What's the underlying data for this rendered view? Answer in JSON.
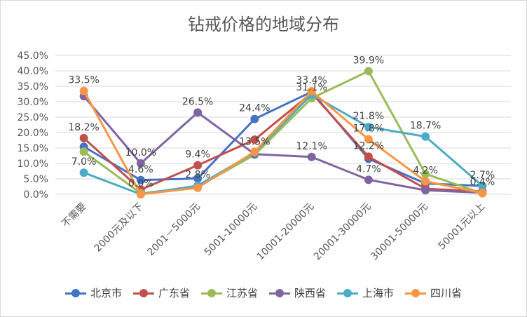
{
  "chart_data": {
    "type": "line",
    "title": "钻戒价格的地域分布",
    "xlabel": "",
    "ylabel": "",
    "ylim": [
      0,
      45
    ],
    "yticks": [
      "0.0%",
      "5.0%",
      "10.0%",
      "15.0%",
      "20.0%",
      "25.0%",
      "30.0%",
      "35.0%",
      "40.0%",
      "45.0%"
    ],
    "grid": true,
    "legend_position": "bottom",
    "categories": [
      "不需要",
      "2000元及以下",
      "2001－5000元",
      "5001-10000元",
      "10001-20000元",
      "20001-30000元",
      "30001-50000元",
      "50001元以上"
    ],
    "series": [
      {
        "name": "北京市",
        "color": "#4472c4",
        "values": [
          15.4,
          4.6,
          5.1,
          24.4,
          33.2,
          11.5,
          3.5,
          2.7
        ]
      },
      {
        "name": "广东省",
        "color": "#c0504d",
        "values": [
          18.2,
          1.5,
          9.4,
          17.7,
          32.8,
          12.2,
          1.8,
          0.9
        ]
      },
      {
        "name": "江苏省",
        "color": "#9bbb59",
        "values": [
          13.8,
          0.3,
          2.4,
          12.8,
          31.1,
          39.9,
          6.6,
          0.3
        ]
      },
      {
        "name": "陕西省",
        "color": "#8064a2",
        "values": [
          31.8,
          10.0,
          26.5,
          13.0,
          12.1,
          4.7,
          1.3,
          0.5
        ]
      },
      {
        "name": "上海市",
        "color": "#4bacc6",
        "values": [
          7.0,
          0.0,
          2.8,
          13.5,
          32.3,
          21.8,
          18.7,
          2.7
        ]
      },
      {
        "name": "四川省",
        "color": "#f79646",
        "values": [
          33.5,
          0.0,
          2.1,
          13.8,
          33.4,
          17.8,
          4.2,
          0.4
        ]
      }
    ],
    "data_labels": [
      {
        "text": "33.5%",
        "series": 5,
        "index": 0
      },
      {
        "text": "18.2%",
        "series": 1,
        "index": 0
      },
      {
        "text": "7.0%",
        "series": 4,
        "index": 0
      },
      {
        "text": "10.0%",
        "series": 3,
        "index": 1
      },
      {
        "text": "4.6%",
        "series": 0,
        "index": 1
      },
      {
        "text": "0.0%",
        "series": 4,
        "index": 1
      },
      {
        "text": "26.5%",
        "series": 3,
        "index": 2
      },
      {
        "text": "9.4%",
        "series": 1,
        "index": 2
      },
      {
        "text": "2.8%",
        "series": 4,
        "index": 2
      },
      {
        "text": "24.4%",
        "series": 0,
        "index": 3
      },
      {
        "text": "13.5%",
        "series": 4,
        "index": 3
      },
      {
        "text": "33.4%",
        "series": 5,
        "index": 4
      },
      {
        "text": "31.1%",
        "series": 2,
        "index": 4
      },
      {
        "text": "12.1%",
        "series": 3,
        "index": 4
      },
      {
        "text": "39.9%",
        "series": 2,
        "index": 5
      },
      {
        "text": "21.8%",
        "series": 4,
        "index": 5
      },
      {
        "text": "17.8%",
        "series": 5,
        "index": 5
      },
      {
        "text": "12.2%",
        "series": 1,
        "index": 5
      },
      {
        "text": "4.7%",
        "series": 3,
        "index": 5
      },
      {
        "text": "18.7%",
        "series": 4,
        "index": 6
      },
      {
        "text": "4.2%",
        "series": 5,
        "index": 6
      },
      {
        "text": "2.7%",
        "series": 0,
        "index": 7
      },
      {
        "text": "0.4%",
        "series": 5,
        "index": 7
      }
    ]
  }
}
